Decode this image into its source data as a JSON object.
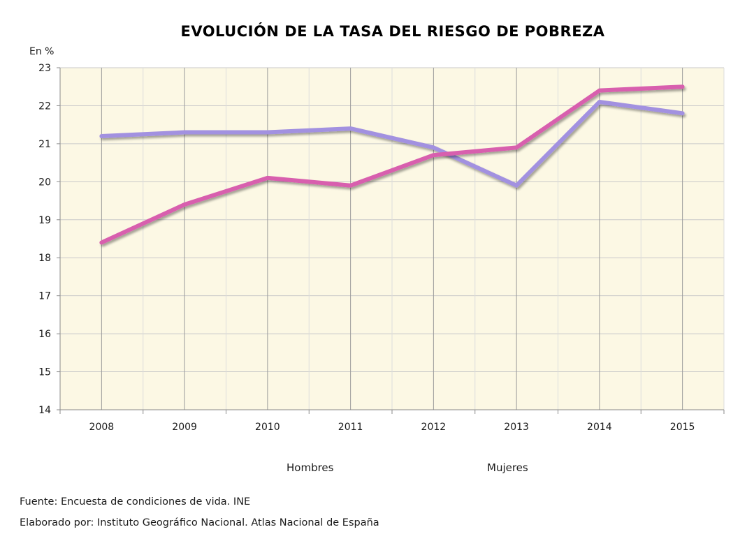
{
  "chart_data": {
    "type": "line",
    "title": "EVOLUCIÓN DE LA TASA DEL RIESGO DE POBREZA",
    "ylabel": "En %",
    "xlabel": "",
    "x": [
      "2008",
      "2009",
      "2010",
      "2011",
      "2012",
      "2013",
      "2014",
      "2015"
    ],
    "ylim": [
      14,
      23
    ],
    "yticks": [
      14,
      15,
      16,
      17,
      18,
      19,
      20,
      21,
      22,
      23
    ],
    "grid": true,
    "legend_position": "bottom",
    "series": [
      {
        "name": "Hombres",
        "color": "#d85fae",
        "values": [
          18.4,
          19.4,
          20.1,
          19.9,
          20.7,
          20.9,
          22.4,
          22.5
        ]
      },
      {
        "name": "Mujeres",
        "color": "#a291e0",
        "values": [
          21.2,
          21.3,
          21.3,
          21.4,
          20.9,
          19.9,
          22.1,
          21.8
        ]
      }
    ],
    "background_color": "#fcf8e4"
  },
  "footer": {
    "source": "Fuente: Encuesta de condiciones de vida. INE",
    "credit": "Elaborado por: Instituto Geográfico Nacional. Atlas Nacional de España"
  }
}
